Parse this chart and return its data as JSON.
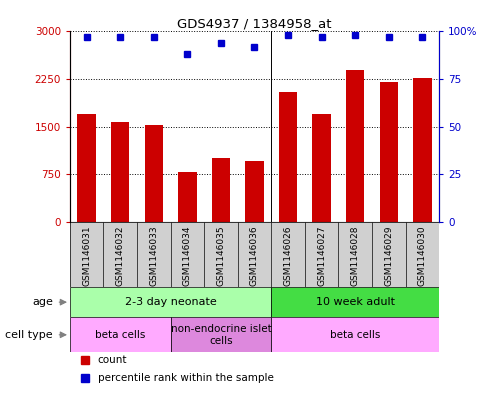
{
  "title": "GDS4937 / 1384958_at",
  "samples": [
    "GSM1146031",
    "GSM1146032",
    "GSM1146033",
    "GSM1146034",
    "GSM1146035",
    "GSM1146036",
    "GSM1146026",
    "GSM1146027",
    "GSM1146028",
    "GSM1146029",
    "GSM1146030"
  ],
  "counts": [
    1700,
    1570,
    1530,
    780,
    1000,
    960,
    2050,
    1700,
    2400,
    2200,
    2270
  ],
  "percentiles": [
    97,
    97,
    97,
    88,
    94,
    92,
    98,
    97,
    98,
    97,
    97
  ],
  "bar_color": "#cc0000",
  "dot_color": "#0000cc",
  "ylim_left": [
    0,
    3000
  ],
  "ylim_right": [
    0,
    100
  ],
  "yticks_left": [
    0,
    750,
    1500,
    2250,
    3000
  ],
  "yticks_right": [
    0,
    25,
    50,
    75,
    100
  ],
  "ytick_labels_left": [
    "0",
    "750",
    "1500",
    "2250",
    "3000"
  ],
  "ytick_labels_right": [
    "0",
    "25",
    "50",
    "75",
    "100%"
  ],
  "age_groups": [
    {
      "label": "2-3 day neonate",
      "start": 0,
      "end": 6,
      "color": "#aaffaa"
    },
    {
      "label": "10 week adult",
      "start": 6,
      "end": 11,
      "color": "#44dd44"
    }
  ],
  "cell_type_groups": [
    {
      "label": "beta cells",
      "start": 0,
      "end": 3,
      "color": "#ffaaff"
    },
    {
      "label": "non-endocrine islet\ncells",
      "start": 3,
      "end": 6,
      "color": "#dd88dd"
    },
    {
      "label": "beta cells",
      "start": 6,
      "end": 11,
      "color": "#ffaaff"
    }
  ],
  "legend_items": [
    {
      "color": "#cc0000",
      "marker": "s",
      "label": "count"
    },
    {
      "color": "#0000cc",
      "marker": "s",
      "label": "percentile rank within the sample"
    }
  ],
  "sample_label_bg": "#d0d0d0",
  "background_color": "#ffffff"
}
